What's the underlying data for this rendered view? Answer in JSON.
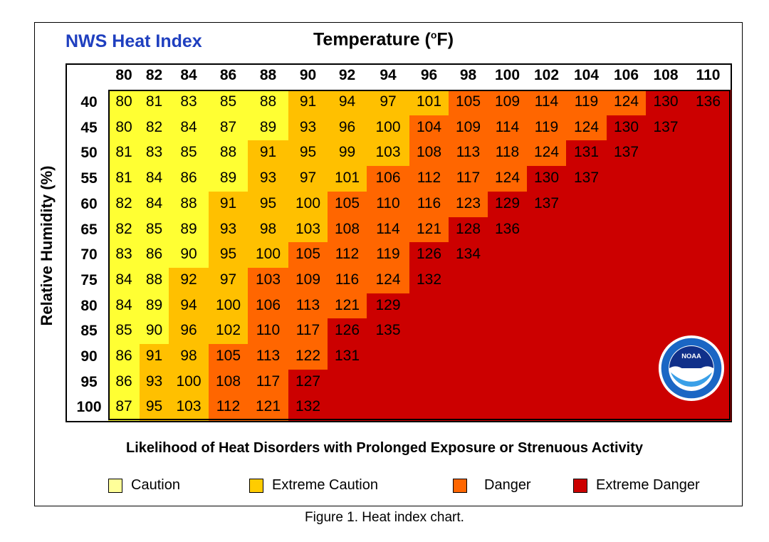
{
  "figure": {
    "caption": "Figure 1. Heat index chart."
  },
  "chart_data": {
    "type": "heatmap",
    "title": "NWS Heat Index",
    "xlabel": "Temperature (°F)",
    "xlabel_parts": {
      "pre": "Temperature (",
      "sup": "o",
      "post": "F)"
    },
    "ylabel": "Relative Humidity (%)",
    "subtitle": "Likelihood of Heat Disorders with Prolonged Exposure or Strenuous Activity",
    "temperatures": [
      "80",
      "82",
      "84",
      "86",
      "88",
      "90",
      "92",
      "94",
      "96",
      "98",
      "100",
      "102",
      "104",
      "106",
      "108",
      "110"
    ],
    "humidities": [
      "40",
      "45",
      "50",
      "55",
      "60",
      "65",
      "70",
      "75",
      "80",
      "85",
      "90",
      "95",
      "100"
    ],
    "values": [
      [
        80,
        81,
        83,
        85,
        88,
        91,
        94,
        97,
        101,
        105,
        109,
        114,
        119,
        124,
        130,
        136
      ],
      [
        80,
        82,
        84,
        87,
        89,
        93,
        96,
        100,
        104,
        109,
        114,
        119,
        124,
        130,
        137,
        null
      ],
      [
        81,
        83,
        85,
        88,
        91,
        95,
        99,
        103,
        108,
        113,
        118,
        124,
        131,
        137,
        null,
        null
      ],
      [
        81,
        84,
        86,
        89,
        93,
        97,
        101,
        106,
        112,
        117,
        124,
        130,
        137,
        null,
        null,
        null
      ],
      [
        82,
        84,
        88,
        91,
        95,
        100,
        105,
        110,
        116,
        123,
        129,
        137,
        null,
        null,
        null,
        null
      ],
      [
        82,
        85,
        89,
        93,
        98,
        103,
        108,
        114,
        121,
        128,
        136,
        null,
        null,
        null,
        null,
        null
      ],
      [
        83,
        86,
        90,
        95,
        100,
        105,
        112,
        119,
        126,
        134,
        null,
        null,
        null,
        null,
        null,
        null
      ],
      [
        84,
        88,
        92,
        97,
        103,
        109,
        116,
        124,
        132,
        null,
        null,
        null,
        null,
        null,
        null,
        null
      ],
      [
        84,
        89,
        94,
        100,
        106,
        113,
        121,
        129,
        null,
        null,
        null,
        null,
        null,
        null,
        null,
        null
      ],
      [
        85,
        90,
        96,
        102,
        110,
        117,
        126,
        135,
        null,
        null,
        null,
        null,
        null,
        null,
        null,
        null
      ],
      [
        86,
        91,
        98,
        105,
        113,
        122,
        131,
        null,
        null,
        null,
        null,
        null,
        null,
        null,
        null,
        null
      ],
      [
        86,
        93,
        100,
        108,
        117,
        127,
        null,
        null,
        null,
        null,
        null,
        null,
        null,
        null,
        null,
        null
      ],
      [
        87,
        95,
        103,
        112,
        121,
        132,
        null,
        null,
        null,
        null,
        null,
        null,
        null,
        null,
        null,
        null
      ]
    ],
    "categories": [
      [
        0,
        0,
        0,
        0,
        0,
        1,
        1,
        1,
        1,
        2,
        2,
        2,
        2,
        2,
        3,
        3
      ],
      [
        0,
        0,
        0,
        0,
        0,
        1,
        1,
        1,
        2,
        2,
        2,
        2,
        2,
        3,
        3,
        3
      ],
      [
        0,
        0,
        0,
        0,
        1,
        1,
        1,
        1,
        2,
        2,
        2,
        2,
        3,
        3,
        3,
        3
      ],
      [
        0,
        0,
        0,
        0,
        1,
        1,
        1,
        2,
        2,
        2,
        2,
        3,
        3,
        3,
        3,
        3
      ],
      [
        0,
        0,
        0,
        1,
        1,
        1,
        2,
        2,
        2,
        2,
        3,
        3,
        3,
        3,
        3,
        3
      ],
      [
        0,
        0,
        0,
        1,
        1,
        1,
        2,
        2,
        2,
        3,
        3,
        3,
        3,
        3,
        3,
        3
      ],
      [
        0,
        0,
        0,
        1,
        1,
        2,
        2,
        2,
        3,
        3,
        3,
        3,
        3,
        3,
        3,
        3
      ],
      [
        0,
        0,
        1,
        1,
        2,
        2,
        2,
        2,
        3,
        3,
        3,
        3,
        3,
        3,
        3,
        3
      ],
      [
        0,
        0,
        1,
        1,
        2,
        2,
        2,
        3,
        3,
        3,
        3,
        3,
        3,
        3,
        3,
        3
      ],
      [
        0,
        0,
        1,
        1,
        2,
        2,
        3,
        3,
        3,
        3,
        3,
        3,
        3,
        3,
        3,
        3
      ],
      [
        0,
        1,
        1,
        2,
        2,
        2,
        3,
        3,
        3,
        3,
        3,
        3,
        3,
        3,
        3,
        3
      ],
      [
        0,
        1,
        1,
        2,
        2,
        3,
        3,
        3,
        3,
        3,
        3,
        3,
        3,
        3,
        3,
        3
      ],
      [
        0,
        1,
        1,
        2,
        2,
        3,
        3,
        3,
        3,
        3,
        3,
        3,
        3,
        3,
        3,
        3
      ]
    ],
    "legend": [
      {
        "name": "Caution",
        "color": "#ffff33"
      },
      {
        "name": "Extreme Caution",
        "color": "#ffc000"
      },
      {
        "name": "Danger",
        "color": "#ff6600"
      },
      {
        "name": "Extreme Danger",
        "color": "#cc0000"
      }
    ],
    "legend_swatch_colors": [
      "#ffff99",
      "#ffcc00",
      "#ff6600",
      "#cc0000"
    ]
  }
}
